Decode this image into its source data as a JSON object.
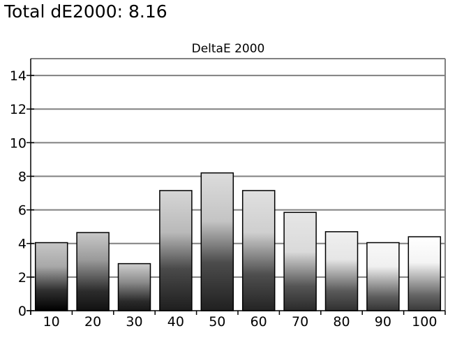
{
  "page": {
    "title": "Total dE2000: 8.16"
  },
  "chart_data": {
    "type": "bar",
    "title": "DeltaE 2000",
    "xlabel": "",
    "ylabel": "",
    "categories": [
      "10",
      "20",
      "30",
      "40",
      "50",
      "60",
      "70",
      "80",
      "90",
      "100"
    ],
    "values": [
      4.05,
      4.65,
      2.8,
      7.15,
      8.2,
      7.15,
      5.85,
      4.7,
      4.05,
      4.4
    ],
    "ylim": [
      0,
      15
    ],
    "yticks": [
      0,
      2,
      4,
      6,
      8,
      10,
      12,
      14
    ],
    "grid": true,
    "legend": "none",
    "colors": {
      "gridline": "#808080",
      "bar_border": "#000000",
      "frame": "#808080"
    }
  }
}
